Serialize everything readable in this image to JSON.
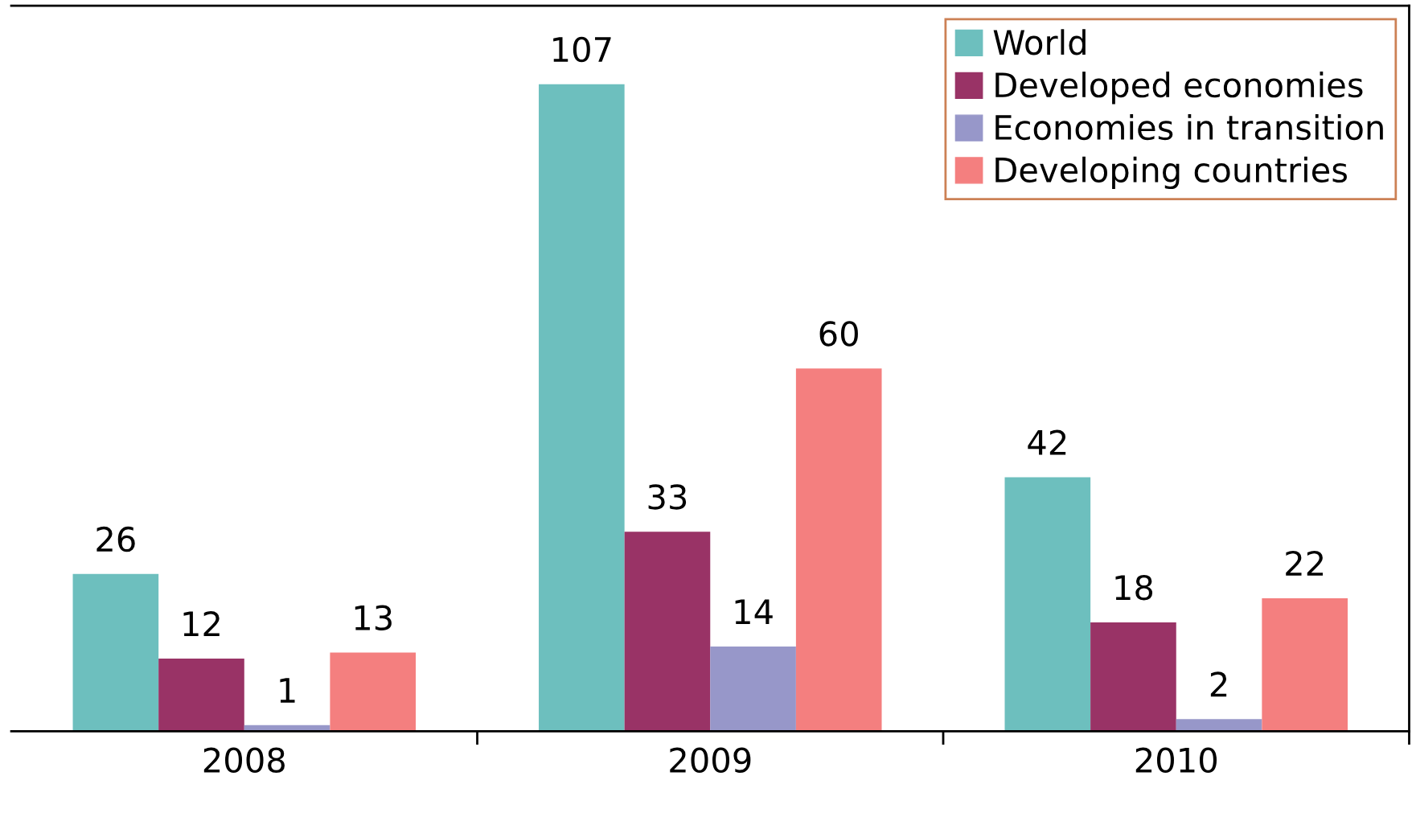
{
  "chart_data": {
    "type": "bar",
    "categories": [
      "2008",
      "2009",
      "2010"
    ],
    "series": [
      {
        "name": "World",
        "color": "#6dbfbe",
        "values": [
          26,
          107,
          42
        ]
      },
      {
        "name": "Developed economies",
        "color": "#993366",
        "values": [
          12,
          33,
          18
        ]
      },
      {
        "name": "Economies in transition",
        "color": "#9797c9",
        "values": [
          1,
          14,
          2
        ]
      },
      {
        "name": "Developing countries",
        "color": "#f47f7f",
        "values": [
          13,
          60,
          22
        ]
      }
    ],
    "ylim": [
      0,
      120
    ],
    "data_labels": true,
    "legend": "top right",
    "grid": false
  }
}
